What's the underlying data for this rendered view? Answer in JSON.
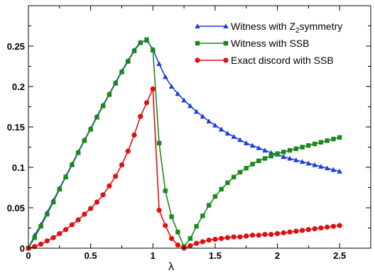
{
  "chart_data": {
    "type": "line",
    "title": "",
    "xlabel": "λ",
    "ylabel": "",
    "xlim": [
      0,
      2.75
    ],
    "ylim": [
      0,
      0.3
    ],
    "x_ticks": [
      0,
      0.5,
      1,
      1.5,
      2,
      2.5
    ],
    "x_tick_labels": [
      "0",
      "0.5",
      "1",
      "1.5",
      "2",
      "2.5"
    ],
    "y_ticks": [
      0,
      0.05,
      0.1,
      0.15,
      0.2,
      0.25
    ],
    "y_tick_labels": [
      "0",
      "0.05",
      "0.1",
      "0.15",
      "0.2",
      "0.25"
    ],
    "grid": false,
    "legend_position": "top-right",
    "series": [
      {
        "name": "Witness with Z2symmetry",
        "legend_main": "Witness with Z",
        "legend_sub": "2",
        "legend_rest": "symmetry",
        "color": "#1f3fd6",
        "marker": "triangle",
        "x": [
          0,
          0.05,
          0.1,
          0.15,
          0.2,
          0.25,
          0.3,
          0.35,
          0.4,
          0.45,
          0.5,
          0.55,
          0.6,
          0.65,
          0.7,
          0.75,
          0.8,
          0.85,
          0.9,
          0.95,
          1.0,
          1.05,
          1.1,
          1.15,
          1.2,
          1.25,
          1.3,
          1.35,
          1.4,
          1.45,
          1.5,
          1.55,
          1.6,
          1.65,
          1.7,
          1.75,
          1.8,
          1.85,
          1.9,
          1.95,
          2.0,
          2.05,
          2.1,
          2.15,
          2.2,
          2.25,
          2.3,
          2.35,
          2.4,
          2.45,
          2.5
        ],
        "y": [
          0,
          0.016,
          0.029,
          0.044,
          0.059,
          0.074,
          0.089,
          0.104,
          0.119,
          0.134,
          0.148,
          0.163,
          0.177,
          0.191,
          0.205,
          0.219,
          0.232,
          0.245,
          0.255,
          0.257,
          0.246,
          0.228,
          0.212,
          0.2,
          0.191,
          0.183,
          0.176,
          0.169,
          0.163,
          0.157,
          0.152,
          0.147,
          0.142,
          0.138,
          0.134,
          0.13,
          0.127,
          0.124,
          0.121,
          0.118,
          0.116,
          0.113,
          0.111,
          0.109,
          0.107,
          0.105,
          0.103,
          0.101,
          0.099,
          0.097,
          0.095
        ]
      },
      {
        "name": "Witness with SSB",
        "color": "#1a8a1a",
        "marker": "square",
        "x": [
          0,
          0.05,
          0.1,
          0.15,
          0.2,
          0.25,
          0.3,
          0.35,
          0.4,
          0.45,
          0.5,
          0.55,
          0.6,
          0.65,
          0.7,
          0.75,
          0.8,
          0.85,
          0.9,
          0.95,
          1.0,
          1.05,
          1.1,
          1.15,
          1.2,
          1.25,
          1.3,
          1.35,
          1.4,
          1.45,
          1.5,
          1.55,
          1.6,
          1.65,
          1.7,
          1.75,
          1.8,
          1.85,
          1.9,
          1.95,
          2.0,
          2.05,
          2.1,
          2.15,
          2.2,
          2.25,
          2.3,
          2.35,
          2.4,
          2.45,
          2.5
        ],
        "y": [
          0,
          0.013,
          0.027,
          0.042,
          0.057,
          0.073,
          0.088,
          0.103,
          0.118,
          0.133,
          0.147,
          0.162,
          0.176,
          0.19,
          0.204,
          0.218,
          0.231,
          0.244,
          0.254,
          0.258,
          0.245,
          0.13,
          0.071,
          0.039,
          0.02,
          0.002,
          0.012,
          0.027,
          0.04,
          0.053,
          0.064,
          0.073,
          0.081,
          0.088,
          0.094,
          0.099,
          0.104,
          0.108,
          0.111,
          0.114,
          0.117,
          0.119,
          0.121,
          0.123,
          0.125,
          0.127,
          0.129,
          0.131,
          0.133,
          0.135,
          0.137
        ]
      },
      {
        "name": "Exact discord with SSB",
        "color": "#e01010",
        "marker": "circle",
        "x": [
          0,
          0.05,
          0.1,
          0.15,
          0.2,
          0.25,
          0.3,
          0.35,
          0.4,
          0.45,
          0.5,
          0.55,
          0.6,
          0.65,
          0.7,
          0.75,
          0.8,
          0.85,
          0.9,
          0.95,
          1.0,
          1.05,
          1.1,
          1.15,
          1.2,
          1.25,
          1.3,
          1.35,
          1.4,
          1.45,
          1.5,
          1.55,
          1.6,
          1.65,
          1.7,
          1.75,
          1.8,
          1.85,
          1.9,
          1.95,
          2.0,
          2.05,
          2.1,
          2.15,
          2.2,
          2.25,
          2.3,
          2.35,
          2.4,
          2.45,
          2.5
        ],
        "y": [
          0,
          0.002,
          0.005,
          0.009,
          0.013,
          0.018,
          0.023,
          0.029,
          0.035,
          0.042,
          0.049,
          0.057,
          0.066,
          0.077,
          0.089,
          0.103,
          0.12,
          0.14,
          0.163,
          0.18,
          0.197,
          0.047,
          0.028,
          0.012,
          0.004,
          0.0,
          0.003,
          0.006,
          0.008,
          0.01,
          0.011,
          0.012,
          0.013,
          0.014,
          0.014,
          0.015,
          0.016,
          0.016,
          0.017,
          0.017,
          0.018,
          0.019,
          0.02,
          0.021,
          0.022,
          0.023,
          0.024,
          0.025,
          0.026,
          0.027,
          0.028
        ]
      }
    ]
  }
}
